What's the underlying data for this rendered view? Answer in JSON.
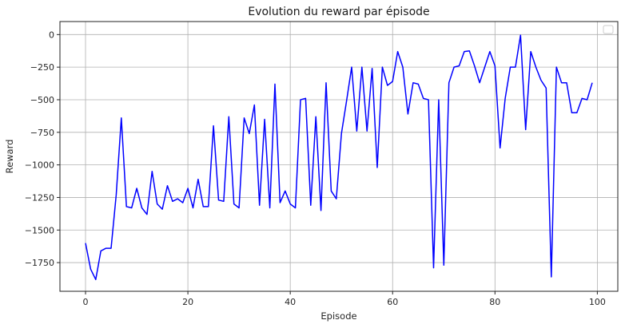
{
  "chart_data": {
    "type": "line",
    "title": "Evolution du reward par épisode",
    "xlabel": "Episode",
    "ylabel": "Reward",
    "xlim": [
      -5,
      104
    ],
    "ylim": [
      -1970,
      100
    ],
    "xticks": [
      0,
      20,
      40,
      60,
      80,
      100
    ],
    "yticks": [
      0,
      -250,
      -500,
      -750,
      -1000,
      -1250,
      -1500,
      -1750
    ],
    "ytick_labels": [
      "0",
      "−250",
      "−500",
      "−750",
      "−1000",
      "−1250",
      "−1500",
      "−1750"
    ],
    "grid": true,
    "legend": "top-right (empty)",
    "line_color": "#0000ff",
    "series": [
      {
        "x": [
          0,
          1,
          2,
          3,
          4,
          5,
          6,
          7,
          8,
          9,
          10,
          11,
          12,
          13,
          14,
          15,
          16,
          17,
          18,
          19,
          20,
          21,
          22,
          23,
          24,
          25,
          26,
          27,
          28,
          29,
          30,
          31,
          32,
          33,
          34,
          35,
          36,
          37,
          38,
          39,
          40,
          41,
          42,
          43,
          44,
          45,
          46,
          47,
          48,
          49,
          50,
          51,
          52,
          53,
          54,
          55,
          56,
          57,
          58,
          59,
          60,
          61,
          62,
          63,
          64,
          65,
          66,
          67,
          68,
          69,
          70,
          71,
          72,
          73,
          74,
          75,
          76,
          77,
          78,
          79,
          80,
          81,
          82,
          83,
          84,
          85,
          86,
          87,
          88,
          89,
          90,
          91,
          92,
          93,
          94,
          95,
          96,
          97,
          98,
          99
        ],
        "values": [
          -1600,
          -1800,
          -1880,
          -1660,
          -1640,
          -1640,
          -1230,
          -640,
          -1320,
          -1330,
          -1180,
          -1330,
          -1380,
          -1050,
          -1300,
          -1340,
          -1160,
          -1280,
          -1260,
          -1290,
          -1180,
          -1330,
          -1110,
          -1320,
          -1320,
          -700,
          -1270,
          -1280,
          -630,
          -1300,
          -1330,
          -640,
          -760,
          -540,
          -1310,
          -650,
          -1330,
          -380,
          -1290,
          -1200,
          -1300,
          -1330,
          -500,
          -490,
          -1310,
          -630,
          -1350,
          -370,
          -1200,
          -1260,
          -760,
          -510,
          -250,
          -740,
          -250,
          -740,
          -260,
          -1020,
          -250,
          -390,
          -360,
          -130,
          -250,
          -610,
          -370,
          -380,
          -490,
          -500,
          -1790,
          -500,
          -1770,
          -370,
          -250,
          -240,
          -130,
          -125,
          -240,
          -370,
          -250,
          -130,
          -240,
          -870,
          -490,
          -250,
          -250,
          -5,
          -730,
          -130,
          -250,
          -350,
          -410,
          -1860,
          -250,
          -370,
          -370,
          -600,
          -600,
          -490,
          -500,
          -370
        ]
      }
    ]
  }
}
